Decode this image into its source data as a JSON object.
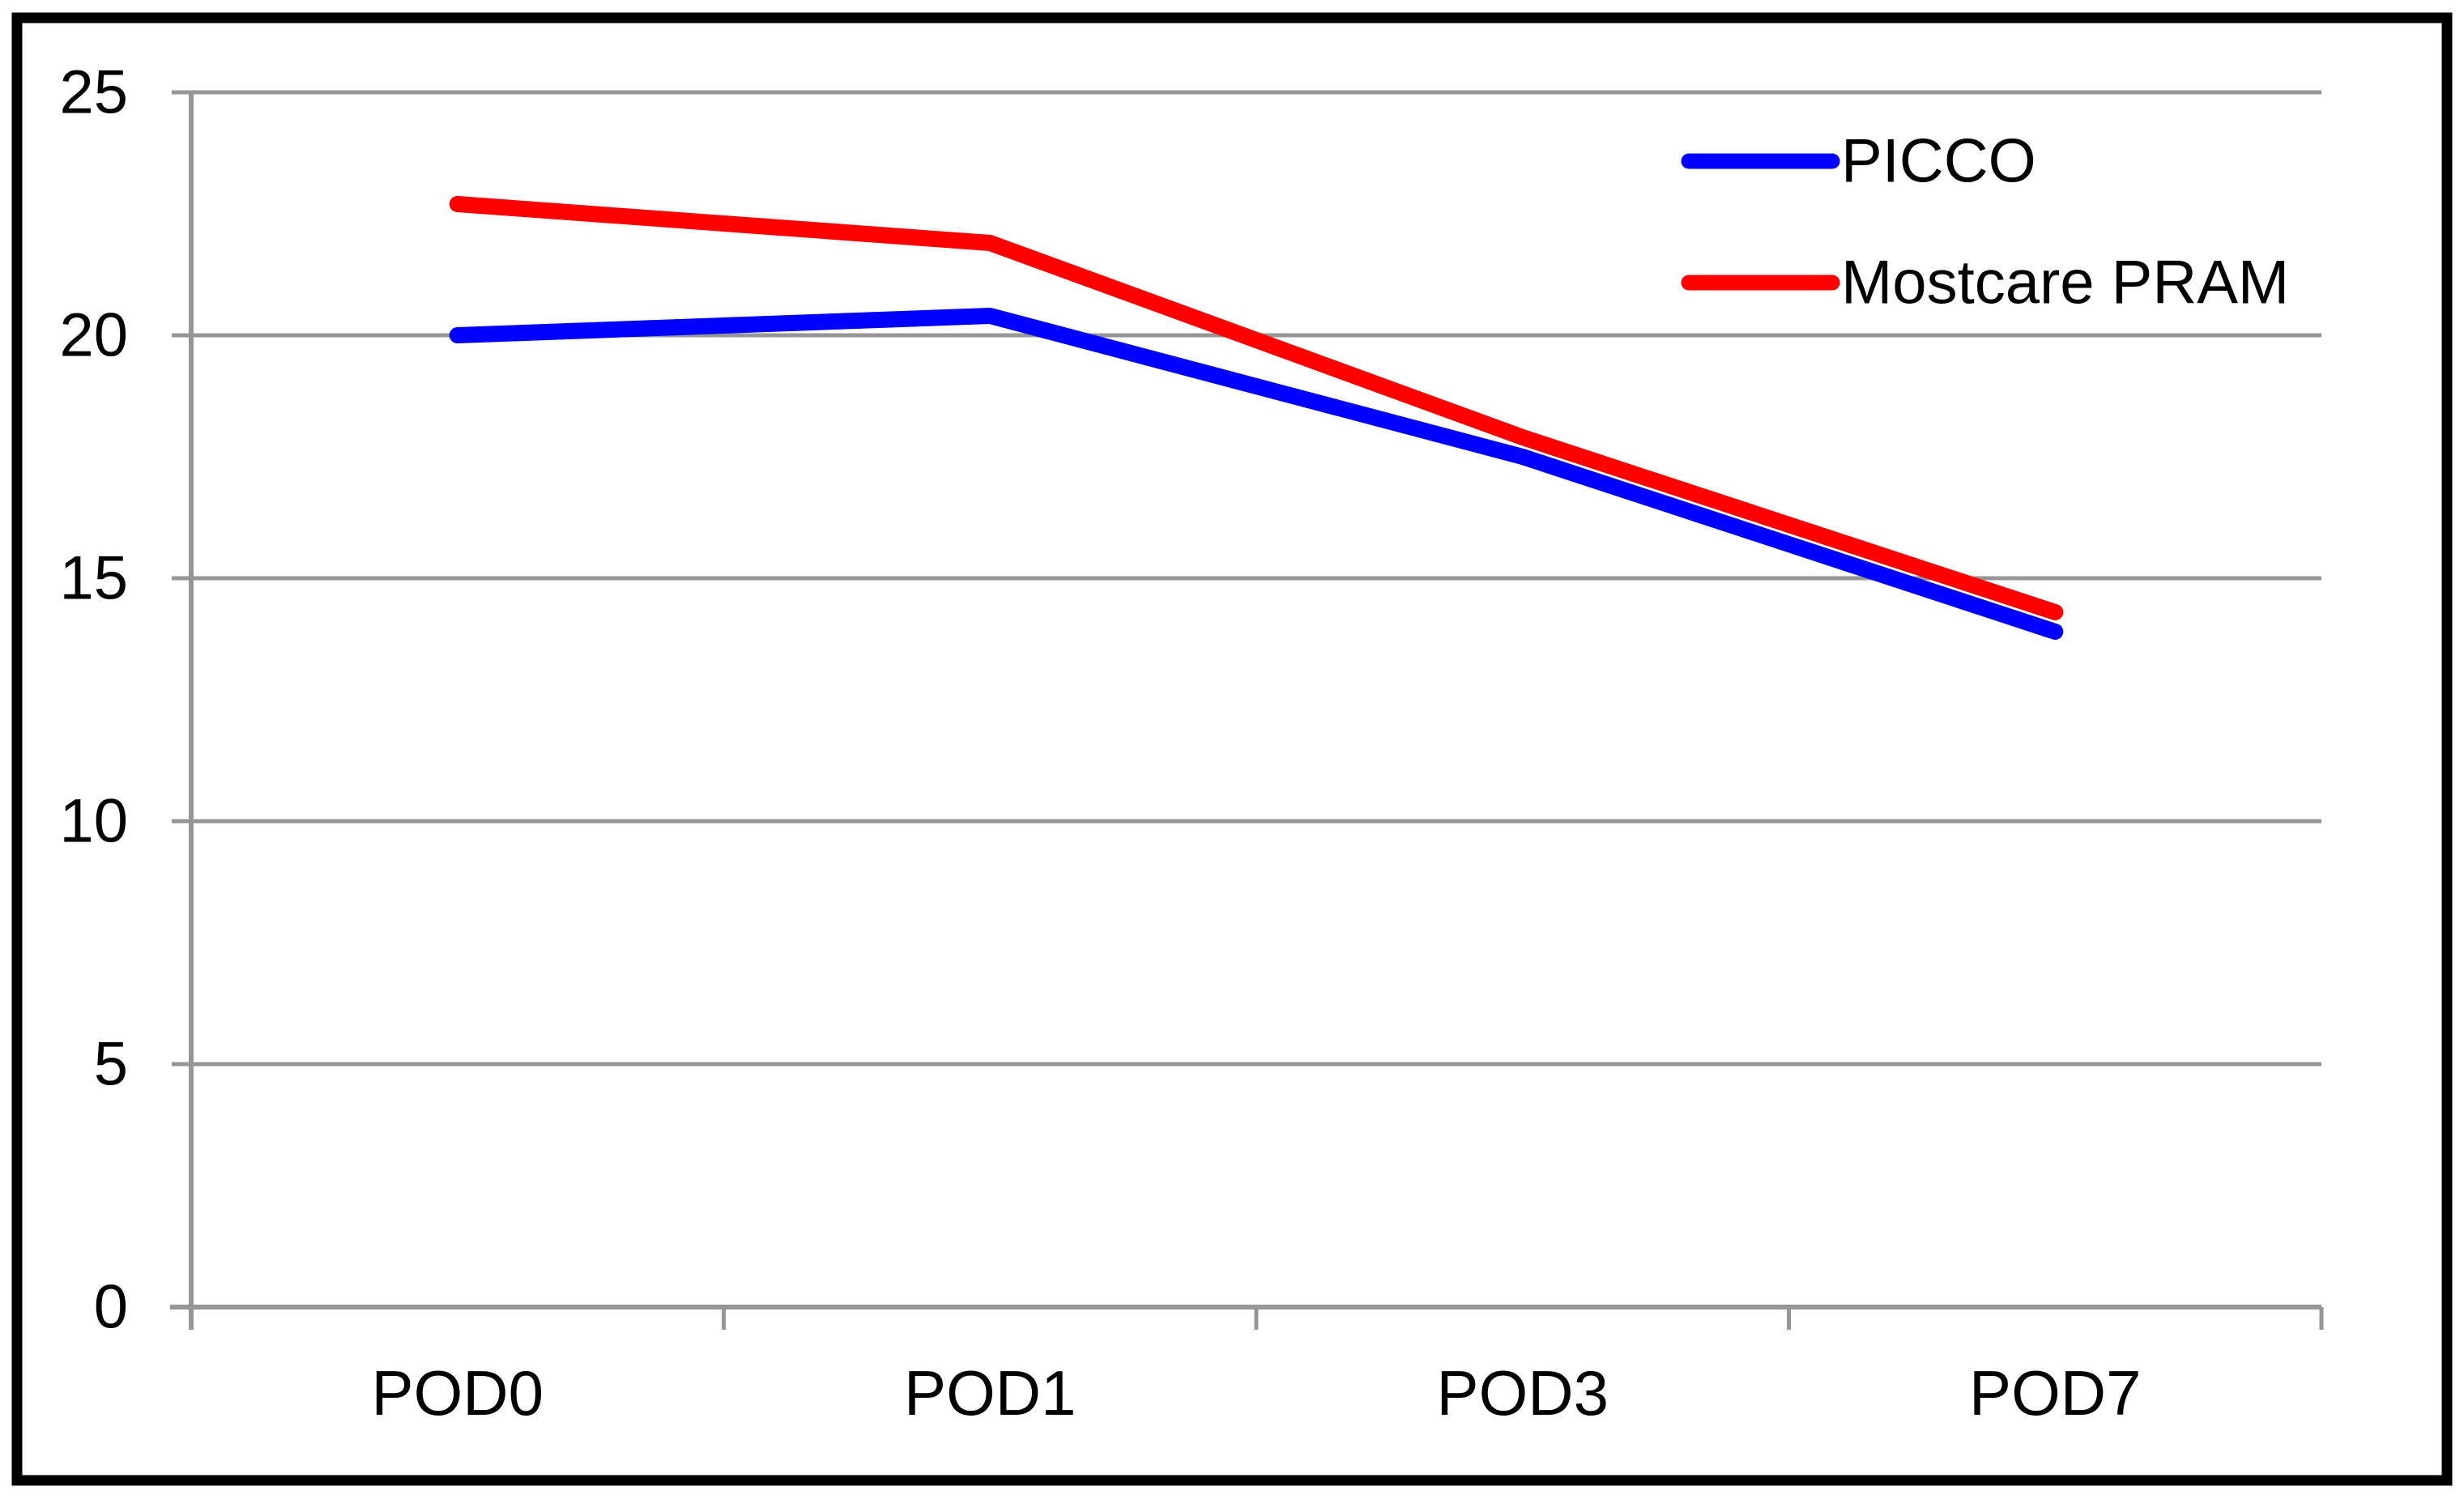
{
  "chart_data": {
    "type": "line",
    "title": "",
    "xlabel": "",
    "ylabel": "",
    "categories": [
      "POD0",
      "POD1",
      "POD3",
      "POD7"
    ],
    "series": [
      {
        "name": "PICCO",
        "color": "#0000ff",
        "values": [
          20.0,
          20.4,
          17.5,
          13.9
        ]
      },
      {
        "name": "Mostcare PRAM",
        "color": "#ff0000",
        "values": [
          22.7,
          21.9,
          17.9,
          14.3
        ]
      }
    ],
    "ylim": [
      0,
      25
    ],
    "ytick_step": 5,
    "yticks": [
      "0",
      "5",
      "10",
      "15",
      "20",
      "25"
    ],
    "grid": true,
    "legend_position": "top-right",
    "colors": {
      "grid": "#969696",
      "axis": "#969696",
      "text": "#000000",
      "frame": "#000000",
      "background": "#ffffff"
    }
  }
}
